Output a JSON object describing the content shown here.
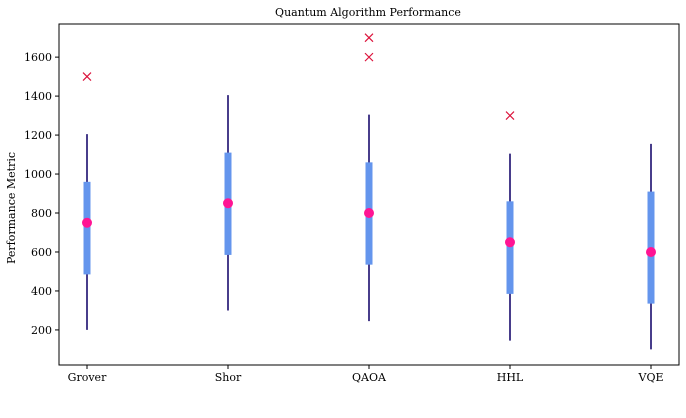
{
  "chart_data": {
    "type": "boxplot",
    "title": "Quantum Algorithm Performance",
    "xlabel": "",
    "ylabel": "Performance Metric",
    "categories": [
      "Grover",
      "Shor",
      "QAOA",
      "HHL",
      "VQE"
    ],
    "ylim": [
      20,
      1770
    ],
    "yticks": [
      200,
      400,
      600,
      800,
      1000,
      1200,
      1400,
      1600
    ],
    "grid": false,
    "boxes": [
      {
        "label": "Grover",
        "whisker_low": 200,
        "q1": 485,
        "median": 750,
        "q3": 960,
        "whisker_high": 1205,
        "outliers": [
          1500
        ]
      },
      {
        "label": "Shor",
        "whisker_low": 300,
        "q1": 585,
        "median": 850,
        "q3": 1110,
        "whisker_high": 1405,
        "outliers": []
      },
      {
        "label": "QAOA",
        "whisker_low": 245,
        "q1": 535,
        "median": 800,
        "q3": 1060,
        "whisker_high": 1305,
        "outliers": [
          1600,
          1700
        ]
      },
      {
        "label": "HHL",
        "whisker_low": 145,
        "q1": 385,
        "median": 650,
        "q3": 860,
        "whisker_high": 1105,
        "outliers": [
          1300
        ]
      },
      {
        "label": "VQE",
        "whisker_low": 100,
        "q1": 335,
        "median": 600,
        "q3": 910,
        "whisker_high": 1155,
        "outliers": []
      }
    ],
    "colors": {
      "whisker": "#483d8b",
      "box": "#6495ed",
      "median": "#ff1493",
      "outlier": "#dc143c",
      "axis": "#000000"
    }
  }
}
